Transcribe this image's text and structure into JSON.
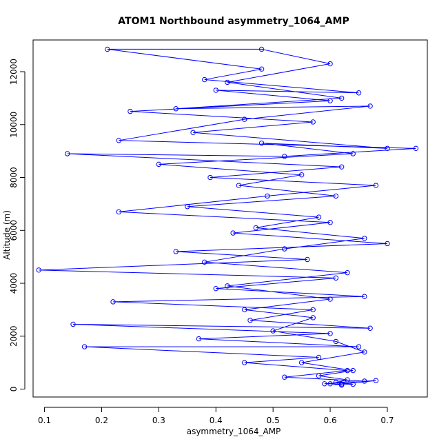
{
  "chart_data": {
    "type": "line",
    "title": "ATOM1 Northbound asymmetry_1064_AMP",
    "xlabel": "asymmetry_1064_AMP",
    "ylabel": "Altitude (m)",
    "xlim": [
      0.08,
      0.77
    ],
    "ylim": [
      -300,
      13200
    ],
    "xticks": [
      0.1,
      0.2,
      0.3,
      0.4,
      0.5,
      0.6,
      0.7
    ],
    "yticks": [
      0,
      2000,
      4000,
      6000,
      8000,
      10000,
      12000
    ],
    "grid": false,
    "marker": "open-circle",
    "colors": {
      "series": "#0000ff",
      "text": "#000000",
      "axes": "#000000"
    },
    "series": [
      {
        "values": [
          [
            0.62,
            150
          ],
          [
            0.6,
            200
          ],
          [
            0.63,
            350
          ],
          [
            0.58,
            500
          ],
          [
            0.64,
            700
          ],
          [
            0.55,
            1000
          ],
          [
            0.66,
            1400
          ],
          [
            0.61,
            1800
          ],
          [
            0.5,
            2200
          ],
          [
            0.57,
            2700
          ],
          [
            0.45,
            3000
          ],
          [
            0.6,
            3400
          ],
          [
            0.42,
            3900
          ],
          [
            0.63,
            4400
          ],
          [
            0.38,
            4800
          ],
          [
            0.52,
            5300
          ],
          [
            0.66,
            5700
          ],
          [
            0.47,
            6100
          ],
          [
            0.58,
            6500
          ],
          [
            0.35,
            6900
          ],
          [
            0.61,
            7300
          ],
          [
            0.44,
            7700
          ],
          [
            0.55,
            8100
          ],
          [
            0.3,
            8500
          ],
          [
            0.64,
            8900
          ],
          [
            0.48,
            9300
          ],
          [
            0.7,
            9100
          ],
          [
            0.36,
            9700
          ],
          [
            0.57,
            10100
          ],
          [
            0.25,
            10500
          ],
          [
            0.6,
            10900
          ],
          [
            0.4,
            11300
          ],
          [
            0.65,
            11200
          ],
          [
            0.38,
            11700
          ],
          [
            0.48,
            12100
          ],
          [
            0.21,
            12850
          ],
          [
            0.48,
            12850
          ],
          [
            0.6,
            12300
          ],
          [
            0.42,
            11600
          ],
          [
            0.62,
            11000
          ],
          [
            0.33,
            10600
          ],
          [
            0.67,
            10700
          ],
          [
            0.45,
            10200
          ],
          [
            0.23,
            9400
          ],
          [
            0.75,
            9100
          ],
          [
            0.52,
            8800
          ],
          [
            0.14,
            8900
          ],
          [
            0.62,
            8400
          ],
          [
            0.39,
            8000
          ],
          [
            0.68,
            7700
          ],
          [
            0.49,
            7300
          ],
          [
            0.23,
            6700
          ],
          [
            0.6,
            6300
          ],
          [
            0.43,
            5900
          ],
          [
            0.7,
            5500
          ],
          [
            0.33,
            5200
          ],
          [
            0.56,
            4900
          ],
          [
            0.09,
            4500
          ],
          [
            0.61,
            4200
          ],
          [
            0.4,
            3800
          ],
          [
            0.66,
            3500
          ],
          [
            0.22,
            3300
          ],
          [
            0.57,
            3000
          ],
          [
            0.46,
            2600
          ],
          [
            0.67,
            2300
          ],
          [
            0.15,
            2450
          ],
          [
            0.6,
            2100
          ],
          [
            0.37,
            1900
          ],
          [
            0.65,
            1600
          ],
          [
            0.17,
            1600
          ],
          [
            0.58,
            1200
          ],
          [
            0.45,
            1000
          ],
          [
            0.63,
            700
          ],
          [
            0.52,
            450
          ],
          [
            0.66,
            300
          ],
          [
            0.59,
            200
          ],
          [
            0.64,
            180
          ],
          [
            0.61,
            250
          ],
          [
            0.68,
            320
          ],
          [
            0.62,
            190
          ]
        ]
      }
    ]
  }
}
